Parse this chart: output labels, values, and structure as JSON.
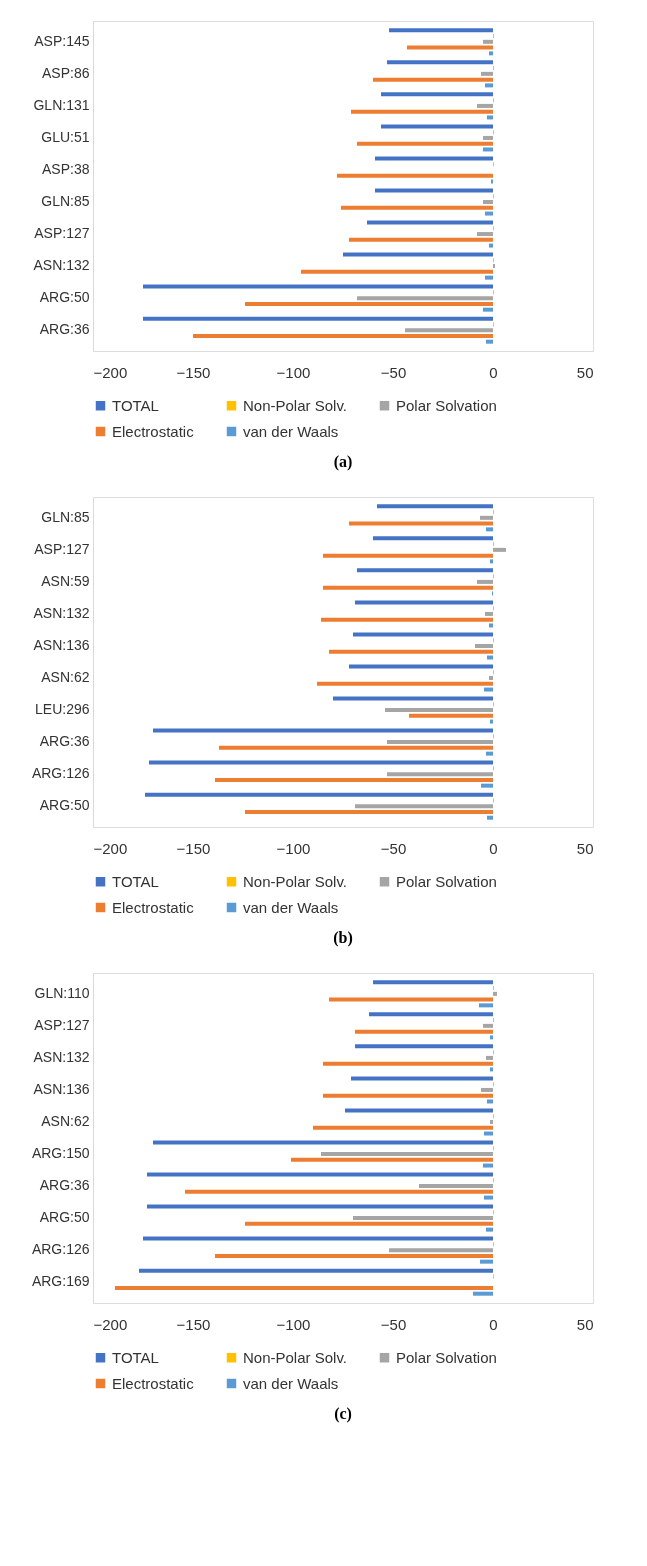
{
  "chart_data": [
    {
      "type": "bar",
      "orientation": "horizontal",
      "categories": [
        "ASP:145",
        "ASP:86",
        "GLN:131",
        "GLU:51",
        "ASP:38",
        "GLN:85",
        "ASP:127",
        "ASN:132",
        "ARG:50",
        "ARG:36"
      ],
      "series": [
        {
          "name": "TOTAL",
          "color": "#4472c4",
          "values": [
            -52,
            -53,
            -56,
            -56,
            -59,
            -59,
            -63,
            -75,
            -175,
            -175
          ]
        },
        {
          "name": "Non-Polar Solv.",
          "color": "#ffc000",
          "values": [
            0.5,
            0.5,
            0.5,
            0.5,
            0.5,
            0.5,
            0.5,
            0.5,
            0.5,
            0.5
          ]
        },
        {
          "name": "Polar Solvation",
          "color": "#a5a5a5",
          "values": [
            -5,
            -6,
            -8,
            -5,
            null,
            -5,
            -8,
            1,
            -68,
            -44
          ]
        },
        {
          "name": "Electrostatic",
          "color": "#ed7d31",
          "values": [
            -43,
            -60,
            -71,
            -68,
            -78,
            -76,
            -72,
            -96,
            -124,
            -150
          ]
        },
        {
          "name": "van der Waals",
          "color": "#5b9bd5",
          "values": [
            -2,
            -4,
            -3,
            -5,
            -1,
            -4,
            -2,
            -4,
            -5,
            -3.5
          ]
        }
      ],
      "xlim": [
        -200,
        50
      ],
      "xticks": [
        -200,
        -150,
        -100,
        -50,
        0,
        50
      ],
      "legend": "bottom",
      "annotations": [
        "(a)"
      ]
    },
    {
      "type": "bar",
      "orientation": "horizontal",
      "categories": [
        "GLN:85",
        "ASP:127",
        "ASN:59",
        "ASN:132",
        "ASN:136",
        "ASN:62",
        "LEU:296",
        "ARG:36",
        "ARG:126",
        "ARG:50"
      ],
      "series": [
        {
          "name": "TOTAL",
          "color": "#4472c4",
          "values": [
            -58,
            -60,
            -68,
            -69,
            -70,
            -72,
            -80,
            -170,
            -172,
            -174
          ]
        },
        {
          "name": "Non-Polar Solv.",
          "color": "#ffc000",
          "values": [
            0.5,
            0.5,
            0.5,
            0.5,
            0.5,
            0.5,
            0.5,
            0.5,
            0.5,
            0.5
          ]
        },
        {
          "name": "Polar Solvation",
          "color": "#a5a5a5",
          "values": [
            -6.5,
            6.5,
            -8,
            -4,
            -9,
            -2,
            -54,
            -53,
            -53,
            -69
          ]
        },
        {
          "name": "Electrostatic",
          "color": "#ed7d31",
          "values": [
            -72,
            -85,
            -85,
            -86,
            -82,
            -88,
            -42,
            -137,
            -139,
            -124
          ]
        },
        {
          "name": "van der Waals",
          "color": "#5b9bd5",
          "values": [
            -3.5,
            -1.5,
            -0.5,
            -2,
            -3,
            -4.5,
            -1.5,
            -3.5,
            -6,
            -3
          ]
        }
      ],
      "xlim": [
        -200,
        50
      ],
      "xticks": [
        -200,
        -150,
        -100,
        -50,
        0,
        50
      ],
      "legend": "bottom",
      "annotations": [
        "(b)"
      ]
    },
    {
      "type": "bar",
      "orientation": "horizontal",
      "categories": [
        "GLN:110",
        "ASP:127",
        "ASN:132",
        "ASN:136",
        "ASN:62",
        "ARG:150",
        "ARG:36",
        "ARG:50",
        "ARG:126",
        "ARG:169"
      ],
      "series": [
        {
          "name": "TOTAL",
          "color": "#4472c4",
          "values": [
            -60,
            -62,
            -69,
            -71,
            -74,
            -170,
            -173,
            -173,
            -175,
            -177
          ]
        },
        {
          "name": "Non-Polar Solv.",
          "color": "#ffc000",
          "values": [
            0.5,
            0.5,
            0.5,
            0.5,
            0.5,
            0.5,
            0.5,
            0.5,
            0.5,
            0.5
          ]
        },
        {
          "name": "Polar Solvation",
          "color": "#a5a5a5",
          "values": [
            2,
            -5,
            -3.5,
            -6,
            -1.5,
            -86,
            -37,
            -70,
            -52,
            null
          ]
        },
        {
          "name": "Electrostatic",
          "color": "#ed7d31",
          "values": [
            -82,
            -69,
            -85,
            -85,
            -90,
            -101,
            -154,
            -124,
            -139,
            -189
          ]
        },
        {
          "name": "van der Waals",
          "color": "#5b9bd5",
          "values": [
            -7,
            -1.5,
            -1.5,
            -3,
            -4.5,
            -5,
            -4.5,
            -3.5,
            -6.5,
            -10
          ]
        }
      ],
      "xlim": [
        -200,
        50
      ],
      "xticks": [
        -200,
        -150,
        -100,
        -50,
        0,
        50
      ],
      "legend": "bottom",
      "annotations": [
        "(c)"
      ]
    }
  ]
}
